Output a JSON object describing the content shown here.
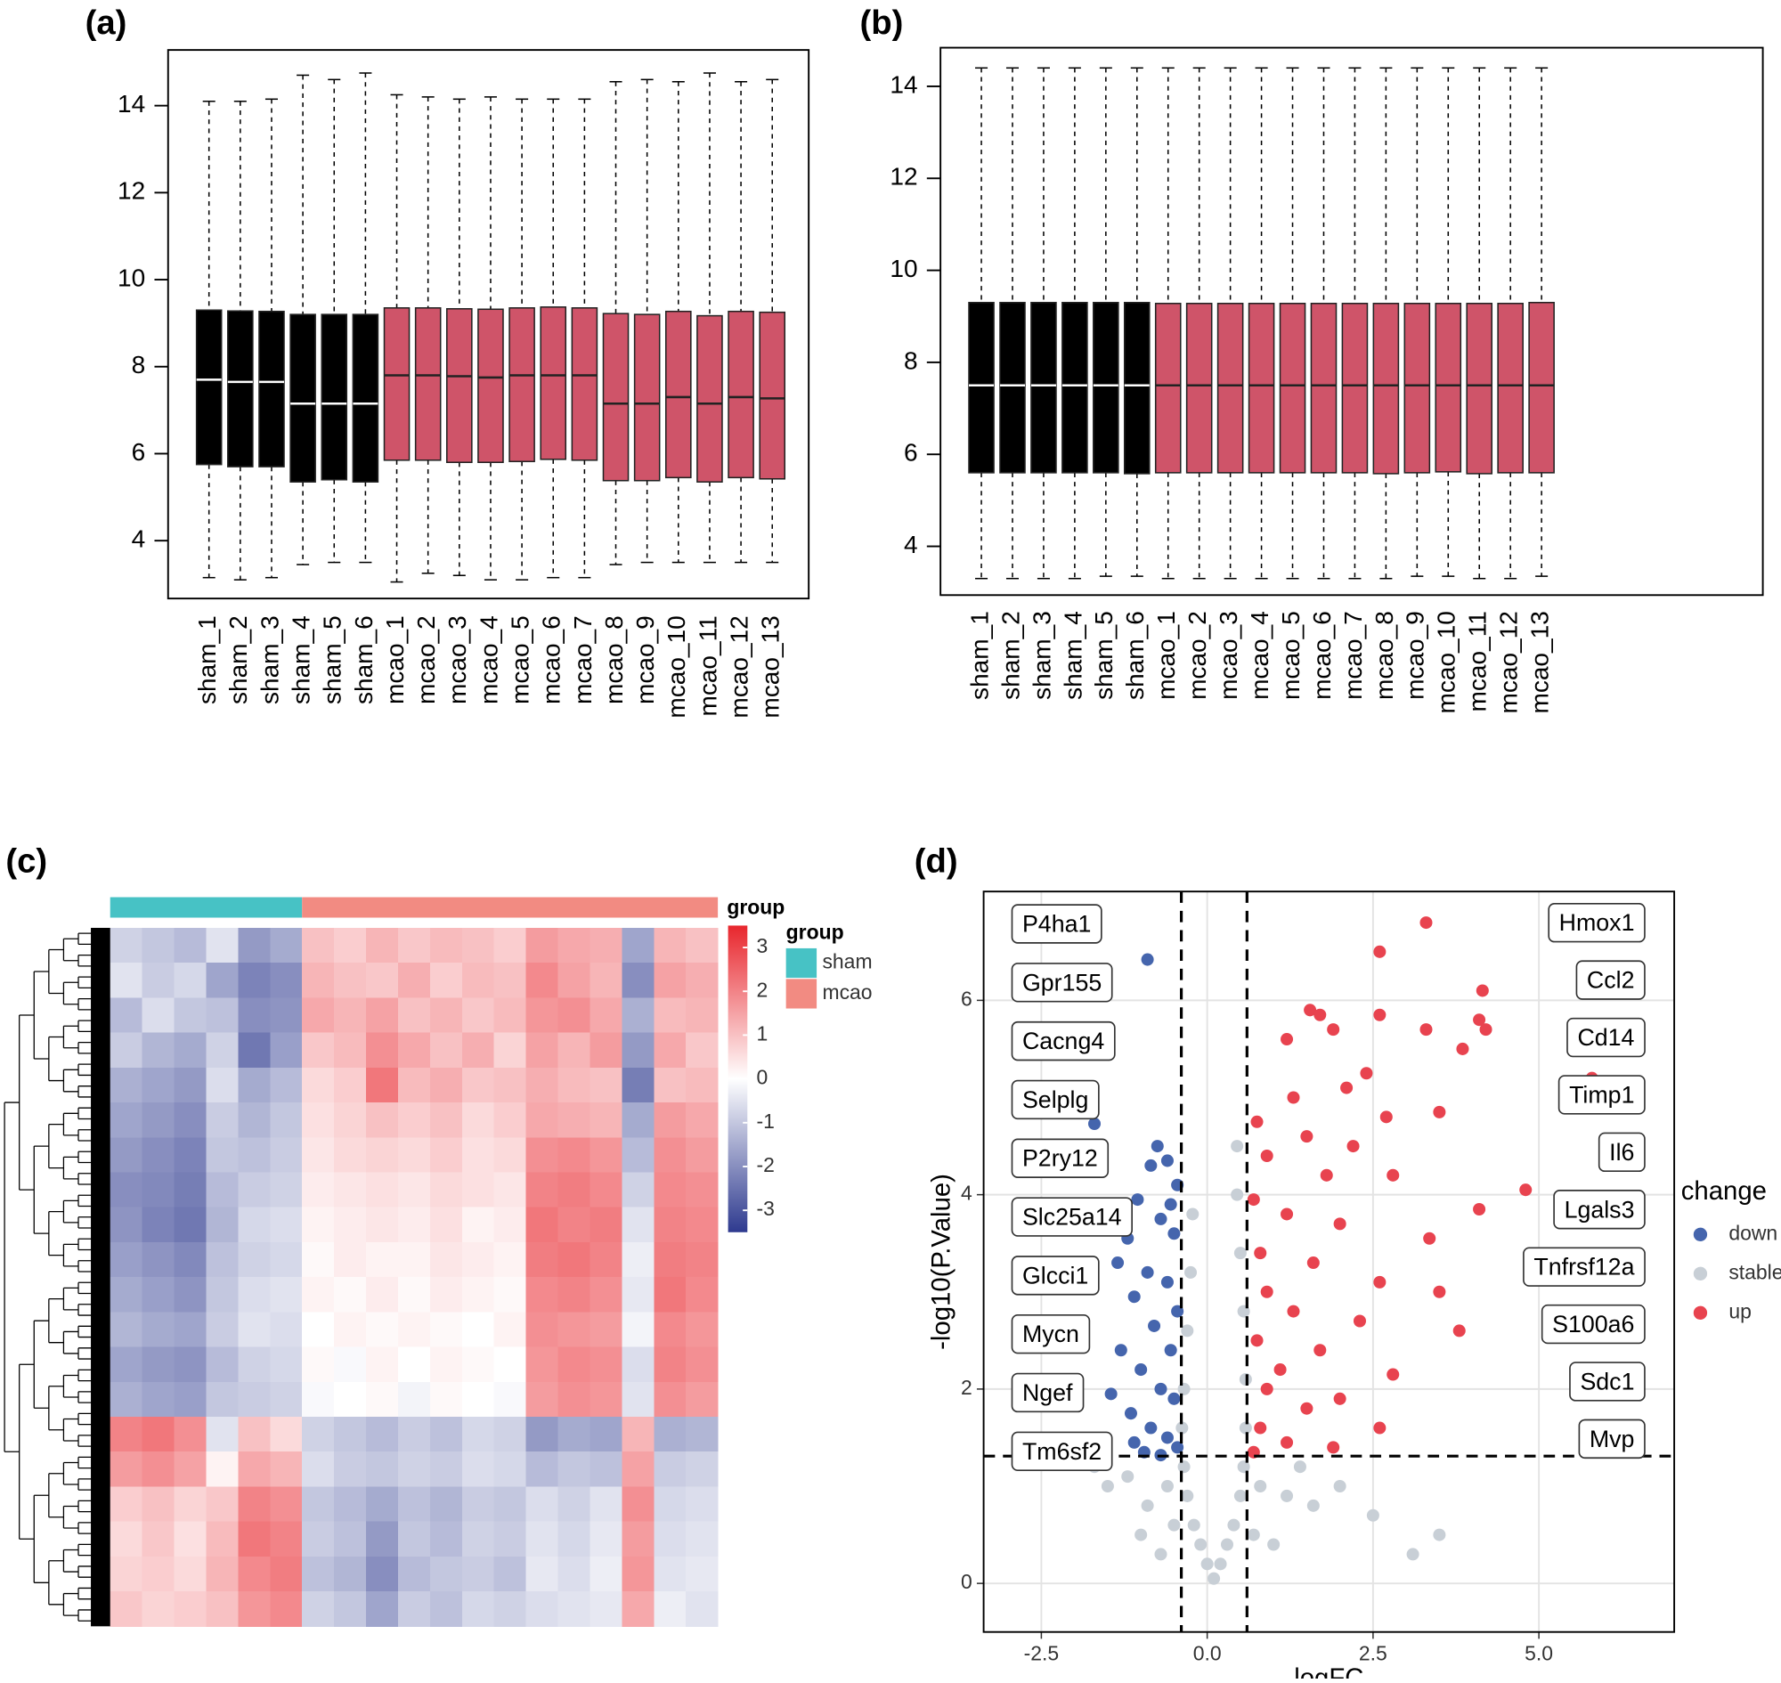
{
  "chart_data": [
    {
      "type": "boxplot",
      "panel_label": "(a)",
      "categories": [
        "sham_1",
        "sham_2",
        "sham_3",
        "sham_4",
        "sham_5",
        "sham_6",
        "mcao_1",
        "mcao_2",
        "mcao_3",
        "mcao_4",
        "mcao_5",
        "mcao_6",
        "mcao_7",
        "mcao_8",
        "mcao_9",
        "mcao_10",
        "mcao_11",
        "mcao_12",
        "mcao_13"
      ],
      "colors": [
        "#000000",
        "#000000",
        "#000000",
        "#000000",
        "#000000",
        "#000000",
        "#cf5469",
        "#cf5469",
        "#cf5469",
        "#cf5469",
        "#cf5469",
        "#cf5469",
        "#cf5469",
        "#cf5469",
        "#cf5469",
        "#cf5469",
        "#cf5469",
        "#cf5469",
        "#cf5469"
      ],
      "min": [
        3.15,
        3.1,
        3.15,
        3.45,
        3.5,
        3.5,
        3.05,
        3.25,
        3.2,
        3.1,
        3.1,
        3.15,
        3.15,
        3.45,
        3.5,
        3.5,
        3.5,
        3.5,
        3.5
      ],
      "q1": [
        5.75,
        5.7,
        5.7,
        5.35,
        5.4,
        5.35,
        5.85,
        5.85,
        5.8,
        5.8,
        5.82,
        5.87,
        5.85,
        5.38,
        5.38,
        5.45,
        5.35,
        5.45,
        5.42
      ],
      "median": [
        7.7,
        7.65,
        7.65,
        7.15,
        7.15,
        7.15,
        7.8,
        7.8,
        7.78,
        7.75,
        7.8,
        7.8,
        7.8,
        7.15,
        7.15,
        7.3,
        7.15,
        7.3,
        7.27
      ],
      "q3": [
        9.3,
        9.28,
        9.27,
        9.2,
        9.2,
        9.2,
        9.35,
        9.35,
        9.33,
        9.32,
        9.35,
        9.37,
        9.35,
        9.22,
        9.2,
        9.27,
        9.17,
        9.27,
        9.25
      ],
      "max": [
        14.1,
        14.1,
        14.15,
        14.7,
        14.6,
        14.75,
        14.25,
        14.2,
        14.15,
        14.2,
        14.15,
        14.15,
        14.15,
        14.55,
        14.6,
        14.55,
        14.75,
        14.55,
        14.6
      ],
      "ylim": [
        2.67,
        15.28
      ],
      "yticks": [
        4,
        6,
        8,
        10,
        12,
        14
      ]
    },
    {
      "type": "boxplot",
      "panel_label": "(b)",
      "categories": [
        "sham_1",
        "sham_2",
        "sham_3",
        "sham_4",
        "sham_5",
        "sham_6",
        "mcao_1",
        "mcao_2",
        "mcao_3",
        "mcao_4",
        "mcao_5",
        "mcao_6",
        "mcao_7",
        "mcao_8",
        "mcao_9",
        "mcao_10",
        "mcao_11",
        "mcao_12",
        "mcao_13"
      ],
      "colors": [
        "#000000",
        "#000000",
        "#000000",
        "#000000",
        "#000000",
        "#000000",
        "#cf5469",
        "#cf5469",
        "#cf5469",
        "#cf5469",
        "#cf5469",
        "#cf5469",
        "#cf5469",
        "#cf5469",
        "#cf5469",
        "#cf5469",
        "#cf5469",
        "#cf5469",
        "#cf5469"
      ],
      "min": [
        3.3,
        3.3,
        3.3,
        3.3,
        3.35,
        3.35,
        3.3,
        3.3,
        3.3,
        3.3,
        3.3,
        3.3,
        3.3,
        3.3,
        3.35,
        3.35,
        3.3,
        3.3,
        3.35
      ],
      "q1": [
        5.6,
        5.6,
        5.6,
        5.6,
        5.6,
        5.58,
        5.6,
        5.6,
        5.6,
        5.6,
        5.6,
        5.6,
        5.6,
        5.58,
        5.6,
        5.62,
        5.58,
        5.6,
        5.6
      ],
      "median": [
        7.5,
        7.5,
        7.5,
        7.5,
        7.5,
        7.5,
        7.5,
        7.5,
        7.5,
        7.5,
        7.5,
        7.5,
        7.5,
        7.5,
        7.5,
        7.5,
        7.5,
        7.5,
        7.5
      ],
      "q3": [
        9.3,
        9.3,
        9.3,
        9.3,
        9.3,
        9.3,
        9.28,
        9.28,
        9.28,
        9.28,
        9.28,
        9.28,
        9.28,
        9.28,
        9.28,
        9.28,
        9.28,
        9.28,
        9.3
      ],
      "max": [
        14.4,
        14.4,
        14.4,
        14.4,
        14.4,
        14.4,
        14.4,
        14.4,
        14.4,
        14.4,
        14.4,
        14.4,
        14.4,
        14.4,
        14.4,
        14.4,
        14.4,
        14.4,
        14.4
      ],
      "ylim": [
        2.94,
        14.84
      ],
      "yticks": [
        4,
        6,
        8,
        10,
        12,
        14
      ]
    },
    {
      "type": "heatmap",
      "panel_label": "(c)",
      "annotation_label": "group",
      "legend_title": "group",
      "annotation": [
        {
          "name": "sham",
          "color": "#47c2c5",
          "count": 6
        },
        {
          "name": "mcao",
          "color": "#f28b82",
          "count": 13
        }
      ],
      "palette": [
        "#2e3a8f",
        "#ffffff",
        "#e8262d"
      ],
      "colorbar_lim": [
        -3.5,
        3.5
      ],
      "colorbar_ticks": [
        3,
        2,
        1,
        0,
        -1,
        -2,
        -3
      ],
      "values": [
        [
          -0.8,
          -1.0,
          -1.2,
          -0.5,
          -1.8,
          -1.5,
          1.0,
          0.8,
          1.2,
          0.9,
          1.1,
          1.0,
          0.8,
          1.6,
          1.4,
          1.3,
          -1.6,
          1.2,
          1.0
        ],
        [
          -0.5,
          -0.9,
          -0.7,
          -1.6,
          -2.2,
          -2.0,
          1.2,
          1.0,
          0.9,
          1.3,
          0.8,
          1.1,
          1.0,
          1.9,
          1.5,
          1.2,
          -2.0,
          1.5,
          1.3
        ],
        [
          -1.2,
          -0.6,
          -1.0,
          -1.1,
          -2.0,
          -1.9,
          1.4,
          1.2,
          1.5,
          1.0,
          1.2,
          0.9,
          1.1,
          1.7,
          1.8,
          1.4,
          -1.4,
          1.1,
          1.2
        ],
        [
          -0.9,
          -1.3,
          -1.5,
          -0.8,
          -2.4,
          -1.7,
          0.9,
          1.1,
          1.8,
          1.4,
          1.0,
          1.3,
          0.7,
          1.5,
          1.2,
          1.6,
          -1.8,
          1.4,
          0.9
        ],
        [
          -1.4,
          -1.6,
          -1.8,
          -0.6,
          -1.5,
          -1.2,
          0.6,
          0.8,
          2.2,
          1.1,
          1.3,
          0.9,
          1.0,
          1.3,
          1.1,
          1.0,
          -2.3,
          1.0,
          1.1
        ],
        [
          -1.6,
          -1.8,
          -2.0,
          -0.9,
          -1.3,
          -1.0,
          0.5,
          0.7,
          1.0,
          0.8,
          1.0,
          0.6,
          0.8,
          1.4,
          1.3,
          1.2,
          -1.5,
          1.6,
          1.4
        ],
        [
          -1.8,
          -2.0,
          -2.2,
          -1.0,
          -1.1,
          -0.9,
          0.4,
          0.6,
          0.7,
          0.6,
          0.8,
          0.5,
          0.6,
          1.8,
          1.9,
          1.7,
          -1.2,
          1.8,
          1.6
        ],
        [
          -2.0,
          -2.1,
          -2.3,
          -1.2,
          -0.9,
          -0.8,
          0.3,
          0.4,
          0.5,
          0.4,
          0.6,
          0.5,
          0.4,
          2.0,
          2.1,
          1.9,
          -0.8,
          1.9,
          1.8
        ],
        [
          -1.9,
          -2.2,
          -2.4,
          -1.3,
          -0.7,
          -0.6,
          0.2,
          0.3,
          0.4,
          0.3,
          0.5,
          0.2,
          0.3,
          2.2,
          2.0,
          2.1,
          -0.5,
          2.0,
          1.9
        ],
        [
          -1.7,
          -1.9,
          -2.1,
          -1.1,
          -0.8,
          -0.7,
          0.1,
          0.3,
          0.2,
          0.2,
          0.4,
          0.3,
          0.2,
          2.1,
          2.2,
          2.0,
          -0.3,
          2.1,
          2.0
        ],
        [
          -1.5,
          -1.7,
          -1.9,
          -1.0,
          -0.6,
          -0.5,
          0.2,
          0.1,
          0.3,
          0.1,
          0.3,
          0.2,
          0.1,
          1.9,
          2.0,
          1.8,
          -0.4,
          2.2,
          1.9
        ],
        [
          -1.3,
          -1.5,
          -1.6,
          -0.9,
          -0.5,
          -0.6,
          0.0,
          0.2,
          0.1,
          0.2,
          0.1,
          0.0,
          0.2,
          1.8,
          1.7,
          1.6,
          -0.2,
          1.9,
          1.7
        ],
        [
          -1.6,
          -1.8,
          -1.9,
          -1.2,
          -0.8,
          -0.7,
          0.1,
          -0.1,
          0.2,
          0.0,
          0.2,
          0.1,
          0.0,
          1.7,
          1.9,
          1.8,
          -0.6,
          2.0,
          1.8
        ],
        [
          -1.4,
          -1.6,
          -1.7,
          -1.0,
          -0.9,
          -0.8,
          -0.1,
          0.0,
          0.1,
          -0.2,
          0.1,
          0.0,
          -0.1,
          1.6,
          1.8,
          1.7,
          -0.5,
          1.8,
          1.6
        ],
        [
          2.0,
          2.2,
          1.8,
          -0.5,
          1.0,
          0.6,
          -0.8,
          -1.0,
          -1.2,
          -0.9,
          -1.1,
          -0.7,
          -0.8,
          -1.8,
          -1.5,
          -1.6,
          1.2,
          -1.4,
          -1.3
        ],
        [
          1.6,
          1.8,
          1.5,
          0.2,
          1.4,
          1.2,
          -0.6,
          -0.9,
          -1.0,
          -0.8,
          -0.9,
          -0.6,
          -0.7,
          -1.2,
          -1.0,
          -1.1,
          1.5,
          -0.9,
          -0.8
        ],
        [
          0.8,
          1.0,
          0.7,
          0.9,
          2.0,
          1.8,
          -1.0,
          -1.2,
          -1.5,
          -1.1,
          -1.3,
          -0.9,
          -1.0,
          -0.6,
          -0.8,
          -0.5,
          1.8,
          -0.7,
          -0.6
        ],
        [
          0.6,
          0.9,
          0.5,
          1.1,
          2.2,
          2.0,
          -0.9,
          -1.1,
          -1.8,
          -1.0,
          -1.2,
          -0.8,
          -0.9,
          -0.5,
          -0.7,
          -0.4,
          1.6,
          -0.6,
          -0.5
        ],
        [
          0.7,
          0.8,
          0.6,
          1.2,
          1.9,
          2.1,
          -1.1,
          -1.3,
          -2.0,
          -1.2,
          -1.0,
          -0.9,
          -1.1,
          -0.4,
          -0.6,
          -0.3,
          1.7,
          -0.5,
          -0.4
        ],
        [
          0.9,
          0.7,
          0.8,
          1.0,
          1.7,
          1.9,
          -0.8,
          -1.0,
          -1.6,
          -0.9,
          -1.1,
          -0.7,
          -0.8,
          -0.6,
          -0.5,
          -0.4,
          1.4,
          -0.3,
          -0.5
        ]
      ]
    },
    {
      "type": "scatter",
      "panel_label": "(d)",
      "x_label": "logFC",
      "y_label": "-log10(P.Value)",
      "legend_title": "change",
      "xlim": [
        -3.37,
        7.04
      ],
      "ylim": [
        -0.5,
        7.12
      ],
      "xticks": [
        -2.5,
        {
          "value": 0,
          "label": "0.0"
        },
        2.5,
        {
          "value": 5,
          "label": "5.0"
        }
      ],
      "yticks": [
        0,
        2,
        4,
        6
      ],
      "grid": true,
      "vlines": [
        -0.39,
        0.6
      ],
      "hline": 1.31,
      "series": [
        {
          "name": "down",
          "color": "#4565ad",
          "x": [
            -0.9,
            -1.7,
            -0.75,
            -0.6,
            -0.85,
            -0.45,
            -1.05,
            -0.55,
            -0.7,
            -1.2,
            -0.5,
            -1.35,
            -0.9,
            -0.6,
            -1.1,
            -0.45,
            -0.8,
            -1.3,
            -0.55,
            -1.0,
            -0.7,
            -1.45,
            -0.5,
            -1.15,
            -0.85,
            -0.6,
            -1.1,
            -0.45,
            -0.95,
            -0.7
          ],
          "values": [
            6.42,
            4.73,
            4.5,
            4.35,
            4.3,
            4.1,
            3.95,
            3.9,
            3.75,
            3.55,
            3.6,
            3.3,
            3.2,
            3.1,
            2.95,
            2.8,
            2.65,
            2.4,
            2.4,
            2.2,
            2.0,
            1.95,
            1.9,
            1.75,
            1.6,
            1.5,
            1.45,
            1.4,
            1.35,
            1.32
          ]
        },
        {
          "name": "stable",
          "color": "#c8cfd6",
          "x": [
            0.1,
            0,
            0.2,
            -0.1,
            0.3,
            -0.2,
            0.4,
            -0.3,
            0.5,
            -0.35,
            0.55,
            -0.38,
            0.58,
            -0.35,
            0.58,
            -0.3,
            0.55,
            -0.25,
            0.5,
            -0.22,
            0.45,
            0.45,
            -0.6,
            -0.9,
            -1.2,
            -1.5,
            -1.7,
            0.8,
            1.2,
            1.6,
            2.0,
            2.5,
            3.1,
            3.5,
            1.0,
            -0.7,
            -0.5,
            0.7,
            1.4,
            -1.0
          ],
          "values": [
            0.05,
            0.2,
            0.2,
            0.4,
            0.4,
            0.6,
            0.6,
            0.9,
            0.9,
            1.2,
            1.2,
            1.6,
            1.6,
            2.0,
            2.1,
            2.6,
            2.8,
            3.2,
            3.4,
            3.8,
            4.0,
            4.5,
            1.0,
            0.8,
            1.1,
            1.0,
            1.2,
            1.0,
            0.9,
            0.8,
            1.0,
            0.7,
            0.3,
            0.5,
            0.4,
            0.3,
            0.6,
            0.5,
            1.2,
            0.5
          ]
        },
        {
          "name": "up",
          "color": "#e8434f",
          "x": [
            3.3,
            2.6,
            4.15,
            4.1,
            4.2,
            3.3,
            1.55,
            1.7,
            2.6,
            1.9,
            1.2,
            3.85,
            5.8,
            2.4,
            2.1,
            1.3,
            2.7,
            0.75,
            3.5,
            1.5,
            2.2,
            0.9,
            2.8,
            1.8,
            4.8,
            4.1,
            0.7,
            1.2,
            2.0,
            3.35,
            0.8,
            1.6,
            2.6,
            0.9,
            3.5,
            1.3,
            2.3,
            3.8,
            0.75,
            1.7,
            1.1,
            2.8,
            0.9,
            2.0,
            1.5,
            2.6,
            0.8,
            1.2,
            0.7,
            1.9
          ],
          "values": [
            6.8,
            6.5,
            6.1,
            5.8,
            5.7,
            5.7,
            5.9,
            5.85,
            5.85,
            5.7,
            5.6,
            5.5,
            5.2,
            5.25,
            5.1,
            5.0,
            4.8,
            4.75,
            4.85,
            4.6,
            4.5,
            4.4,
            4.2,
            4.2,
            4.05,
            3.85,
            3.95,
            3.8,
            3.7,
            3.55,
            3.4,
            3.3,
            3.1,
            3.0,
            3.0,
            2.8,
            2.7,
            2.6,
            2.5,
            2.4,
            2.2,
            2.15,
            2.0,
            1.9,
            1.8,
            1.6,
            1.6,
            1.45,
            1.35,
            1.4
          ]
        }
      ],
      "labels_left": [
        "P4ha1",
        "Gpr155",
        "Cacng4",
        "Selplg",
        "P2ry12",
        "Slc25a14",
        "Glcci1",
        "Mycn",
        "Ngef",
        "Tm6sf2"
      ],
      "labels_right": [
        "Hmox1",
        "Ccl2",
        "Cd14",
        "Timp1",
        "Il6",
        "Lgals3",
        "Tnfrsf12a",
        "S100a6",
        "Sdc1",
        "Mvp"
      ]
    }
  ]
}
